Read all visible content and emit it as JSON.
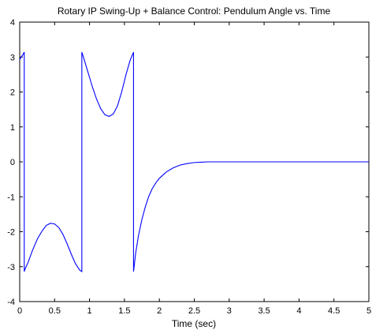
{
  "chart_data": {
    "type": "line",
    "title": "Rotary IP Swing-Up + Balance Control: Pendulum Angle vs. Time",
    "xlabel": "Time (sec)",
    "ylabel": "",
    "xlim": [
      0,
      5
    ],
    "ylim": [
      -4,
      4
    ],
    "xticks": [
      "0",
      "0.5",
      "1",
      "1.5",
      "2",
      "2.5",
      "3",
      "3.5",
      "4",
      "4.5",
      "5"
    ],
    "yticks": [
      "-4",
      "-3",
      "-2",
      "-1",
      "0",
      "1",
      "2",
      "3",
      "4"
    ],
    "grid": false,
    "legend": "none",
    "line_color": "#0000ff",
    "series": [
      {
        "x": [
          0,
          0.02,
          0.05,
          0.065,
          0.065,
          0.08,
          0.12,
          0.18,
          0.25,
          0.32,
          0.38,
          0.44,
          0.5,
          0.56,
          0.62,
          0.68,
          0.74,
          0.8,
          0.86,
          0.89,
          0.89,
          0.92,
          0.98,
          1.04,
          1.1,
          1.16,
          1.22,
          1.28,
          1.34,
          1.4,
          1.46,
          1.52,
          1.58,
          1.63,
          1.63,
          1.66,
          1.7,
          1.75,
          1.8,
          1.85,
          1.9,
          1.95,
          2.0,
          2.1,
          2.2,
          2.3,
          2.4,
          2.5,
          2.6,
          2.7,
          3.0,
          3.5,
          4.0,
          4.5,
          5.0
        ],
        "y": [
          2.92,
          3.0,
          3.08,
          3.14,
          -3.14,
          -3.05,
          -2.88,
          -2.55,
          -2.22,
          -1.98,
          -1.82,
          -1.76,
          -1.78,
          -1.88,
          -2.08,
          -2.35,
          -2.65,
          -2.92,
          -3.1,
          -3.14,
          3.14,
          2.95,
          2.55,
          2.15,
          1.8,
          1.52,
          1.35,
          1.3,
          1.37,
          1.6,
          2.0,
          2.48,
          2.9,
          3.14,
          -3.14,
          -2.62,
          -2.12,
          -1.65,
          -1.28,
          -0.98,
          -0.76,
          -0.6,
          -0.47,
          -0.29,
          -0.17,
          -0.09,
          -0.05,
          -0.02,
          -0.01,
          0.0,
          0.0,
          0.0,
          0.0,
          0.0,
          0.0
        ]
      }
    ]
  }
}
